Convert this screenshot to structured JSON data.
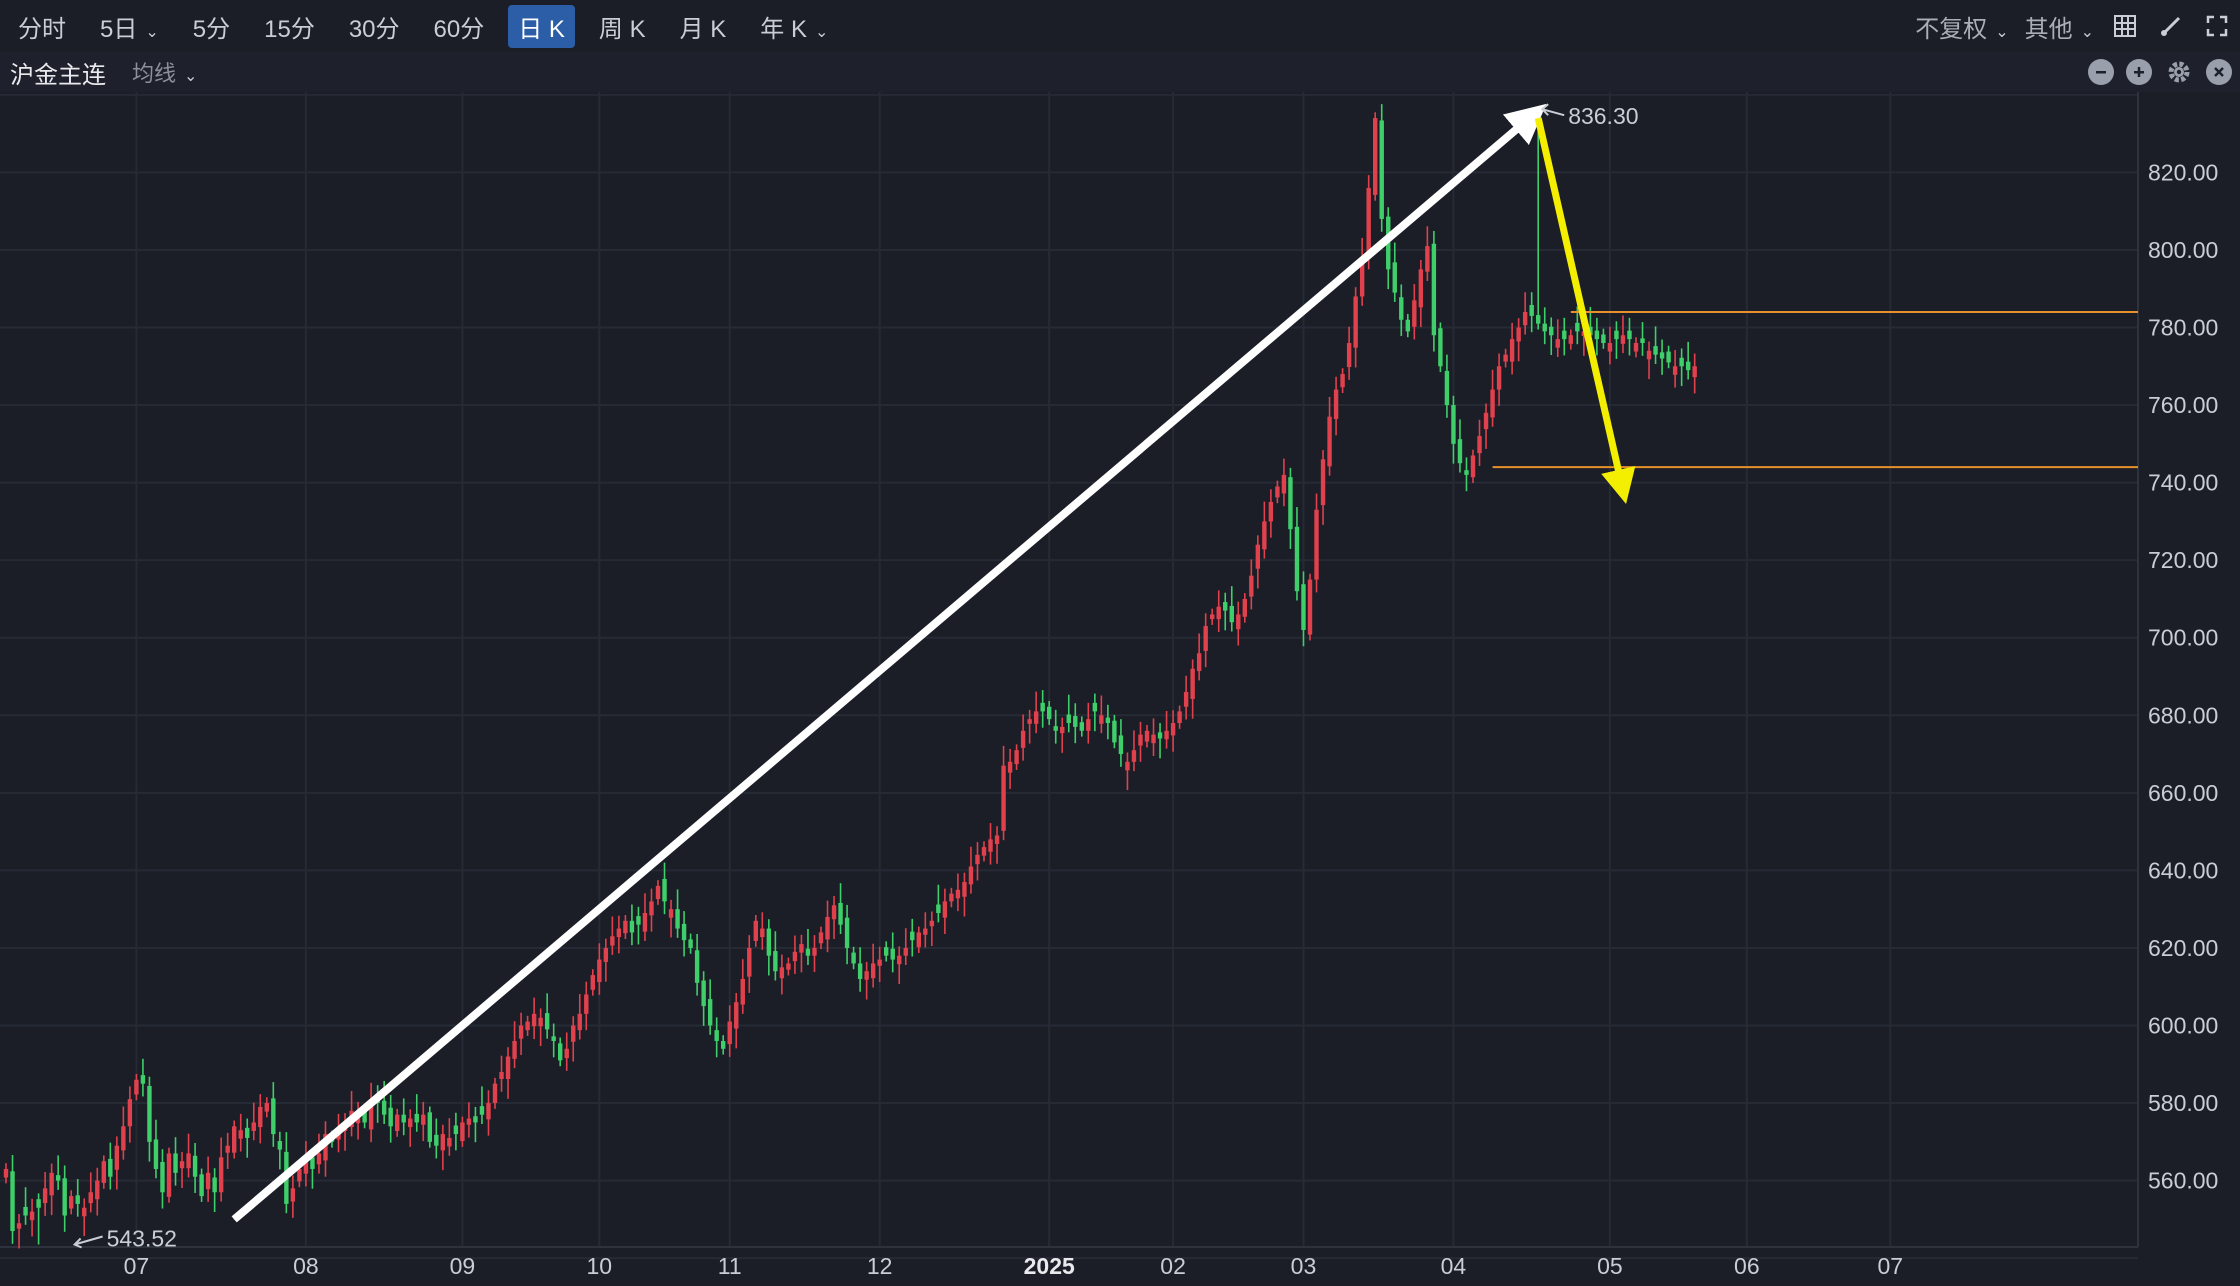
{
  "toolbar": {
    "periods": [
      "分时",
      "5日",
      "5分",
      "15分",
      "30分",
      "60分",
      "日 K",
      "周 K",
      "月 K",
      "年 K"
    ],
    "active_period": "日 K",
    "adjust": "不复权",
    "other": "其他"
  },
  "subbar": {
    "symbol": "沪金主连",
    "indicator": "均线"
  },
  "icons": [
    "chevron-down-icon",
    "grid-icon",
    "brush-icon",
    "fullscreen-icon",
    "minus-circle-icon",
    "plus-circle-icon",
    "gear-icon",
    "close-circle-icon"
  ],
  "colors": {
    "up": "#e0414d",
    "down": "#3fcf6a",
    "grid": "#262a34",
    "background": "#1b1e27",
    "level": "#e8912a",
    "arrow_up": "#ffffff",
    "arrow_down": "#f4ee00"
  },
  "chart_data": {
    "type": "candlestick",
    "title": "沪金主连",
    "ylim": [
      540,
      845
    ],
    "y_ticks": [
      560,
      580,
      600,
      620,
      640,
      660,
      680,
      700,
      720,
      740,
      760,
      780,
      800,
      820
    ],
    "y_tick_labels": [
      "560.00",
      "580.00",
      "600.00",
      "620.00",
      "640.00",
      "660.00",
      "680.00",
      "700.00",
      "720.00",
      "740.00",
      "760.00",
      "780.00",
      "800.00",
      "820.00"
    ],
    "x_tick_labels": [
      "07",
      "08",
      "09",
      "10",
      "11",
      "12",
      "2025",
      "02",
      "03",
      "04",
      "05",
      "06",
      "07"
    ],
    "x_tick_index": [
      20,
      46,
      70,
      91,
      111,
      134,
      160,
      179,
      199,
      222,
      246,
      267,
      289
    ],
    "annotations": {
      "high": "836.30",
      "low": "543.52"
    },
    "high_index": 235,
    "low_index": 5,
    "levels": [
      784,
      744
    ],
    "closes": [
      563,
      547,
      549,
      551,
      552,
      553,
      558,
      562,
      560,
      551,
      556,
      554,
      553,
      557,
      560,
      565,
      561,
      569,
      574,
      581,
      586,
      585,
      570,
      563,
      557,
      567,
      562,
      565,
      567,
      561,
      556,
      562,
      557,
      566,
      569,
      574,
      573,
      571,
      575,
      579,
      580,
      572,
      568,
      554,
      558,
      563,
      566,
      563,
      567,
      572,
      570,
      573,
      575,
      578,
      577,
      575,
      581,
      580,
      577,
      574,
      577,
      575,
      576,
      575,
      577,
      570,
      569,
      572,
      571,
      572,
      575,
      576,
      575,
      577,
      580,
      585,
      588,
      592,
      596,
      600,
      601,
      603,
      602,
      599,
      596,
      591,
      594,
      600,
      603,
      608,
      613,
      617,
      620,
      623,
      625,
      627,
      624,
      626,
      629,
      632,
      636,
      632,
      630,
      625,
      622,
      620,
      611,
      605,
      600,
      596,
      594,
      601,
      606,
      612,
      620,
      627,
      625,
      618,
      614,
      615,
      616,
      619,
      621,
      618,
      620,
      624,
      628,
      631,
      626,
      620,
      616,
      612,
      614,
      616,
      617,
      618,
      617,
      618,
      620,
      622,
      624,
      625,
      627,
      629,
      632,
      634,
      635,
      637,
      641,
      644,
      646,
      648,
      649,
      667,
      668,
      671,
      676,
      679,
      681,
      681,
      679,
      676,
      677,
      678,
      677,
      676,
      679,
      681,
      680,
      678,
      673,
      670,
      668,
      671,
      675,
      676,
      675,
      674,
      676,
      678,
      681,
      686,
      692,
      696,
      703,
      706,
      708,
      707,
      704,
      706,
      710,
      716,
      724,
      730,
      735,
      739,
      742,
      728,
      712,
      702,
      715,
      733,
      746,
      757,
      764,
      768,
      776,
      788,
      798,
      816,
      834,
      808,
      795,
      789,
      782,
      779,
      787,
      795,
      801,
      778,
      770,
      760,
      750,
      745,
      742,
      747,
      752,
      758,
      764,
      770,
      773,
      777,
      780,
      784,
      783,
      781,
      779,
      778,
      777,
      777,
      778,
      779,
      779,
      778,
      777,
      776,
      776,
      777,
      778,
      777,
      776,
      776,
      774,
      773,
      772,
      771,
      770,
      770,
      769,
      770
    ]
  }
}
